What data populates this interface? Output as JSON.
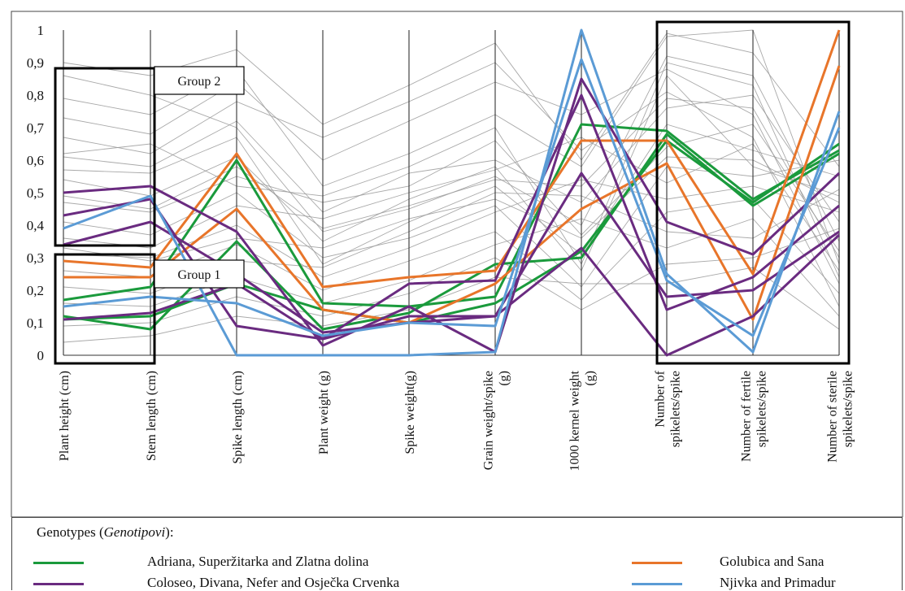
{
  "chart_data": {
    "type": "parallel-coordinates",
    "ylim": [
      0,
      1
    ],
    "y_ticks": [
      "0",
      "0,1",
      "0,2",
      "0,3",
      "0,4",
      "0,5",
      "0,6",
      "0,7",
      "0,8",
      "0,9",
      "1"
    ],
    "grid": false,
    "axes": [
      "Plant height (cm)",
      "Stem length (cm)",
      "Spike length (cm)",
      "Plant weight (g)",
      "Spike weight(g)",
      "Grain weight/spike (g)",
      "1000 kernel weight (g)",
      "Number of spikelets/spike",
      "Number of fertile spikelets/spike",
      "Number of sterile spikelets/spike"
    ],
    "axis_label_lines": [
      [
        "Plant height (cm)"
      ],
      [
        "Stem length (cm)"
      ],
      [
        "Spike length (cm)"
      ],
      [
        "Plant weight (g)"
      ],
      [
        "Spike weight(g)"
      ],
      [
        "Grain weight/spike",
        "(g)"
      ],
      [
        "1000 kernel weight",
        "(g)"
      ],
      [
        "Number of",
        "spikelets/spike"
      ],
      [
        "Number of fertile",
        "spikelets/spike"
      ],
      [
        "Number of sterile",
        "spikelets/spike"
      ]
    ],
    "annotations": [
      "Group 2",
      "Group 1"
    ],
    "highlighted_series": [
      {
        "group": "Adriana, Superžitarka and Zlatna dolina",
        "color": "#1a9a3c",
        "values": [
          0.17,
          0.21,
          0.6,
          0.16,
          0.15,
          0.18,
          0.71,
          0.69,
          0.48,
          0.63
        ]
      },
      {
        "group": "Adriana, Superžitarka and Zlatna dolina",
        "color": "#1a9a3c",
        "values": [
          0.12,
          0.08,
          0.35,
          0.08,
          0.13,
          0.28,
          0.3,
          0.68,
          0.46,
          0.62
        ]
      },
      {
        "group": "Adriana, Superžitarka and Zlatna dolina",
        "color": "#1a9a3c",
        "values": [
          0.11,
          0.12,
          0.22,
          0.14,
          0.1,
          0.16,
          0.32,
          0.66,
          0.47,
          0.65
        ]
      },
      {
        "group": "Golubica and Sana",
        "color": "#e8752a",
        "values": [
          0.29,
          0.27,
          0.62,
          0.21,
          0.24,
          0.26,
          0.66,
          0.66,
          0.25,
          1.0
        ]
      },
      {
        "group": "Golubica and Sana",
        "color": "#e8752a",
        "values": [
          0.24,
          0.24,
          0.45,
          0.14,
          0.1,
          0.22,
          0.45,
          0.59,
          0.11,
          0.89
        ]
      },
      {
        "group": "Coloseo, Divana, Nefer and Osječka Crvenka",
        "color": "#6a2b80",
        "values": [
          0.5,
          0.52,
          0.38,
          0.03,
          0.15,
          0.01,
          0.85,
          0.41,
          0.31,
          0.56
        ]
      },
      {
        "group": "Coloseo, Divana, Nefer and Osječka Crvenka",
        "color": "#6a2b80",
        "values": [
          0.43,
          0.48,
          0.09,
          0.05,
          0.22,
          0.23,
          0.8,
          0.14,
          0.24,
          0.46
        ]
      },
      {
        "group": "Coloseo, Divana, Nefer and Osječka Crvenka",
        "color": "#6a2b80",
        "values": [
          0.34,
          0.41,
          0.25,
          0.07,
          0.1,
          0.12,
          0.56,
          0.18,
          0.2,
          0.38
        ]
      },
      {
        "group": "Coloseo, Divana, Nefer and Osječka Crvenka",
        "color": "#6a2b80",
        "values": [
          0.11,
          0.13,
          0.22,
          0.05,
          0.12,
          0.12,
          0.33,
          0.0,
          0.12,
          0.37
        ]
      },
      {
        "group": "Njivka and Primadur",
        "color": "#5b9bd5",
        "values": [
          0.39,
          0.49,
          0.0,
          0.0,
          0.0,
          0.01,
          1.0,
          0.25,
          0.01,
          0.75
        ]
      },
      {
        "group": "Njivka and Primadur",
        "color": "#5b9bd5",
        "values": [
          0.15,
          0.18,
          0.16,
          0.06,
          0.1,
          0.09,
          0.91,
          0.23,
          0.06,
          0.7
        ]
      }
    ],
    "background_series": [
      [
        0.86,
        0.8,
        0.7,
        0.38,
        0.45,
        0.55,
        0.4,
        0.92,
        0.86,
        0.35
      ],
      [
        0.79,
        0.74,
        0.88,
        0.52,
        0.62,
        0.74,
        0.58,
        0.98,
        1.0,
        0.28
      ],
      [
        0.73,
        0.68,
        0.84,
        0.6,
        0.72,
        0.84,
        0.74,
        0.88,
        0.74,
        0.22
      ],
      [
        0.67,
        0.62,
        0.78,
        0.67,
        0.78,
        0.9,
        0.63,
        0.81,
        0.67,
        0.15
      ],
      [
        0.61,
        0.58,
        0.72,
        0.44,
        0.56,
        0.6,
        0.47,
        0.76,
        0.8,
        0.41
      ],
      [
        0.57,
        0.56,
        0.67,
        0.28,
        0.41,
        0.52,
        0.31,
        0.71,
        0.63,
        0.55
      ],
      [
        0.54,
        0.49,
        0.61,
        0.35,
        0.48,
        0.58,
        0.26,
        0.86,
        0.58,
        0.49
      ],
      [
        0.47,
        0.44,
        0.55,
        0.47,
        0.52,
        0.66,
        0.37,
        0.64,
        0.71,
        0.32
      ],
      [
        0.41,
        0.37,
        0.5,
        0.3,
        0.36,
        0.46,
        0.21,
        0.58,
        0.55,
        0.6
      ],
      [
        0.36,
        0.33,
        0.46,
        0.42,
        0.5,
        0.57,
        0.67,
        0.53,
        0.65,
        0.26
      ],
      [
        0.31,
        0.3,
        0.4,
        0.24,
        0.33,
        0.44,
        0.54,
        0.48,
        0.52,
        0.44
      ],
      [
        0.26,
        0.24,
        0.34,
        0.2,
        0.29,
        0.38,
        0.17,
        0.44,
        0.48,
        0.19
      ],
      [
        0.21,
        0.19,
        0.29,
        0.27,
        0.38,
        0.5,
        0.49,
        0.38,
        0.36,
        0.51
      ],
      [
        0.16,
        0.15,
        0.24,
        0.16,
        0.23,
        0.34,
        0.42,
        0.33,
        0.42,
        0.12
      ],
      [
        0.09,
        0.1,
        0.18,
        0.12,
        0.19,
        0.3,
        0.14,
        0.28,
        0.3,
        0.39
      ],
      [
        0.04,
        0.06,
        0.12,
        0.09,
        0.14,
        0.24,
        0.22,
        0.22,
        0.27,
        0.08
      ],
      [
        0.9,
        0.86,
        0.94,
        0.71,
        0.83,
        0.96,
        0.6,
        0.99,
        0.93,
        0.58
      ],
      [
        0.62,
        0.65,
        0.52,
        0.49,
        0.58,
        0.7,
        0.28,
        0.9,
        0.83,
        0.24
      ],
      [
        0.49,
        0.45,
        0.58,
        0.39,
        0.46,
        0.54,
        0.52,
        0.79,
        0.76,
        0.3
      ],
      [
        0.33,
        0.29,
        0.36,
        0.33,
        0.42,
        0.48,
        0.36,
        0.61,
        0.6,
        0.47
      ]
    ]
  },
  "legend": {
    "title_prefix": "Genotypes (",
    "title_italic": "Genotipovi",
    "title_suffix": "):",
    "items": [
      {
        "label": "Adriana, Superžitarka and Zlatna dolina",
        "color": "#1a9a3c"
      },
      {
        "label": "Golubica and Sana",
        "color": "#e8752a"
      },
      {
        "label": "Coloseo, Divana, Nefer and Osječka Crvenka",
        "color": "#6a2b80"
      },
      {
        "label": "Njivka and Primadur",
        "color": "#5b9bd5"
      }
    ]
  }
}
